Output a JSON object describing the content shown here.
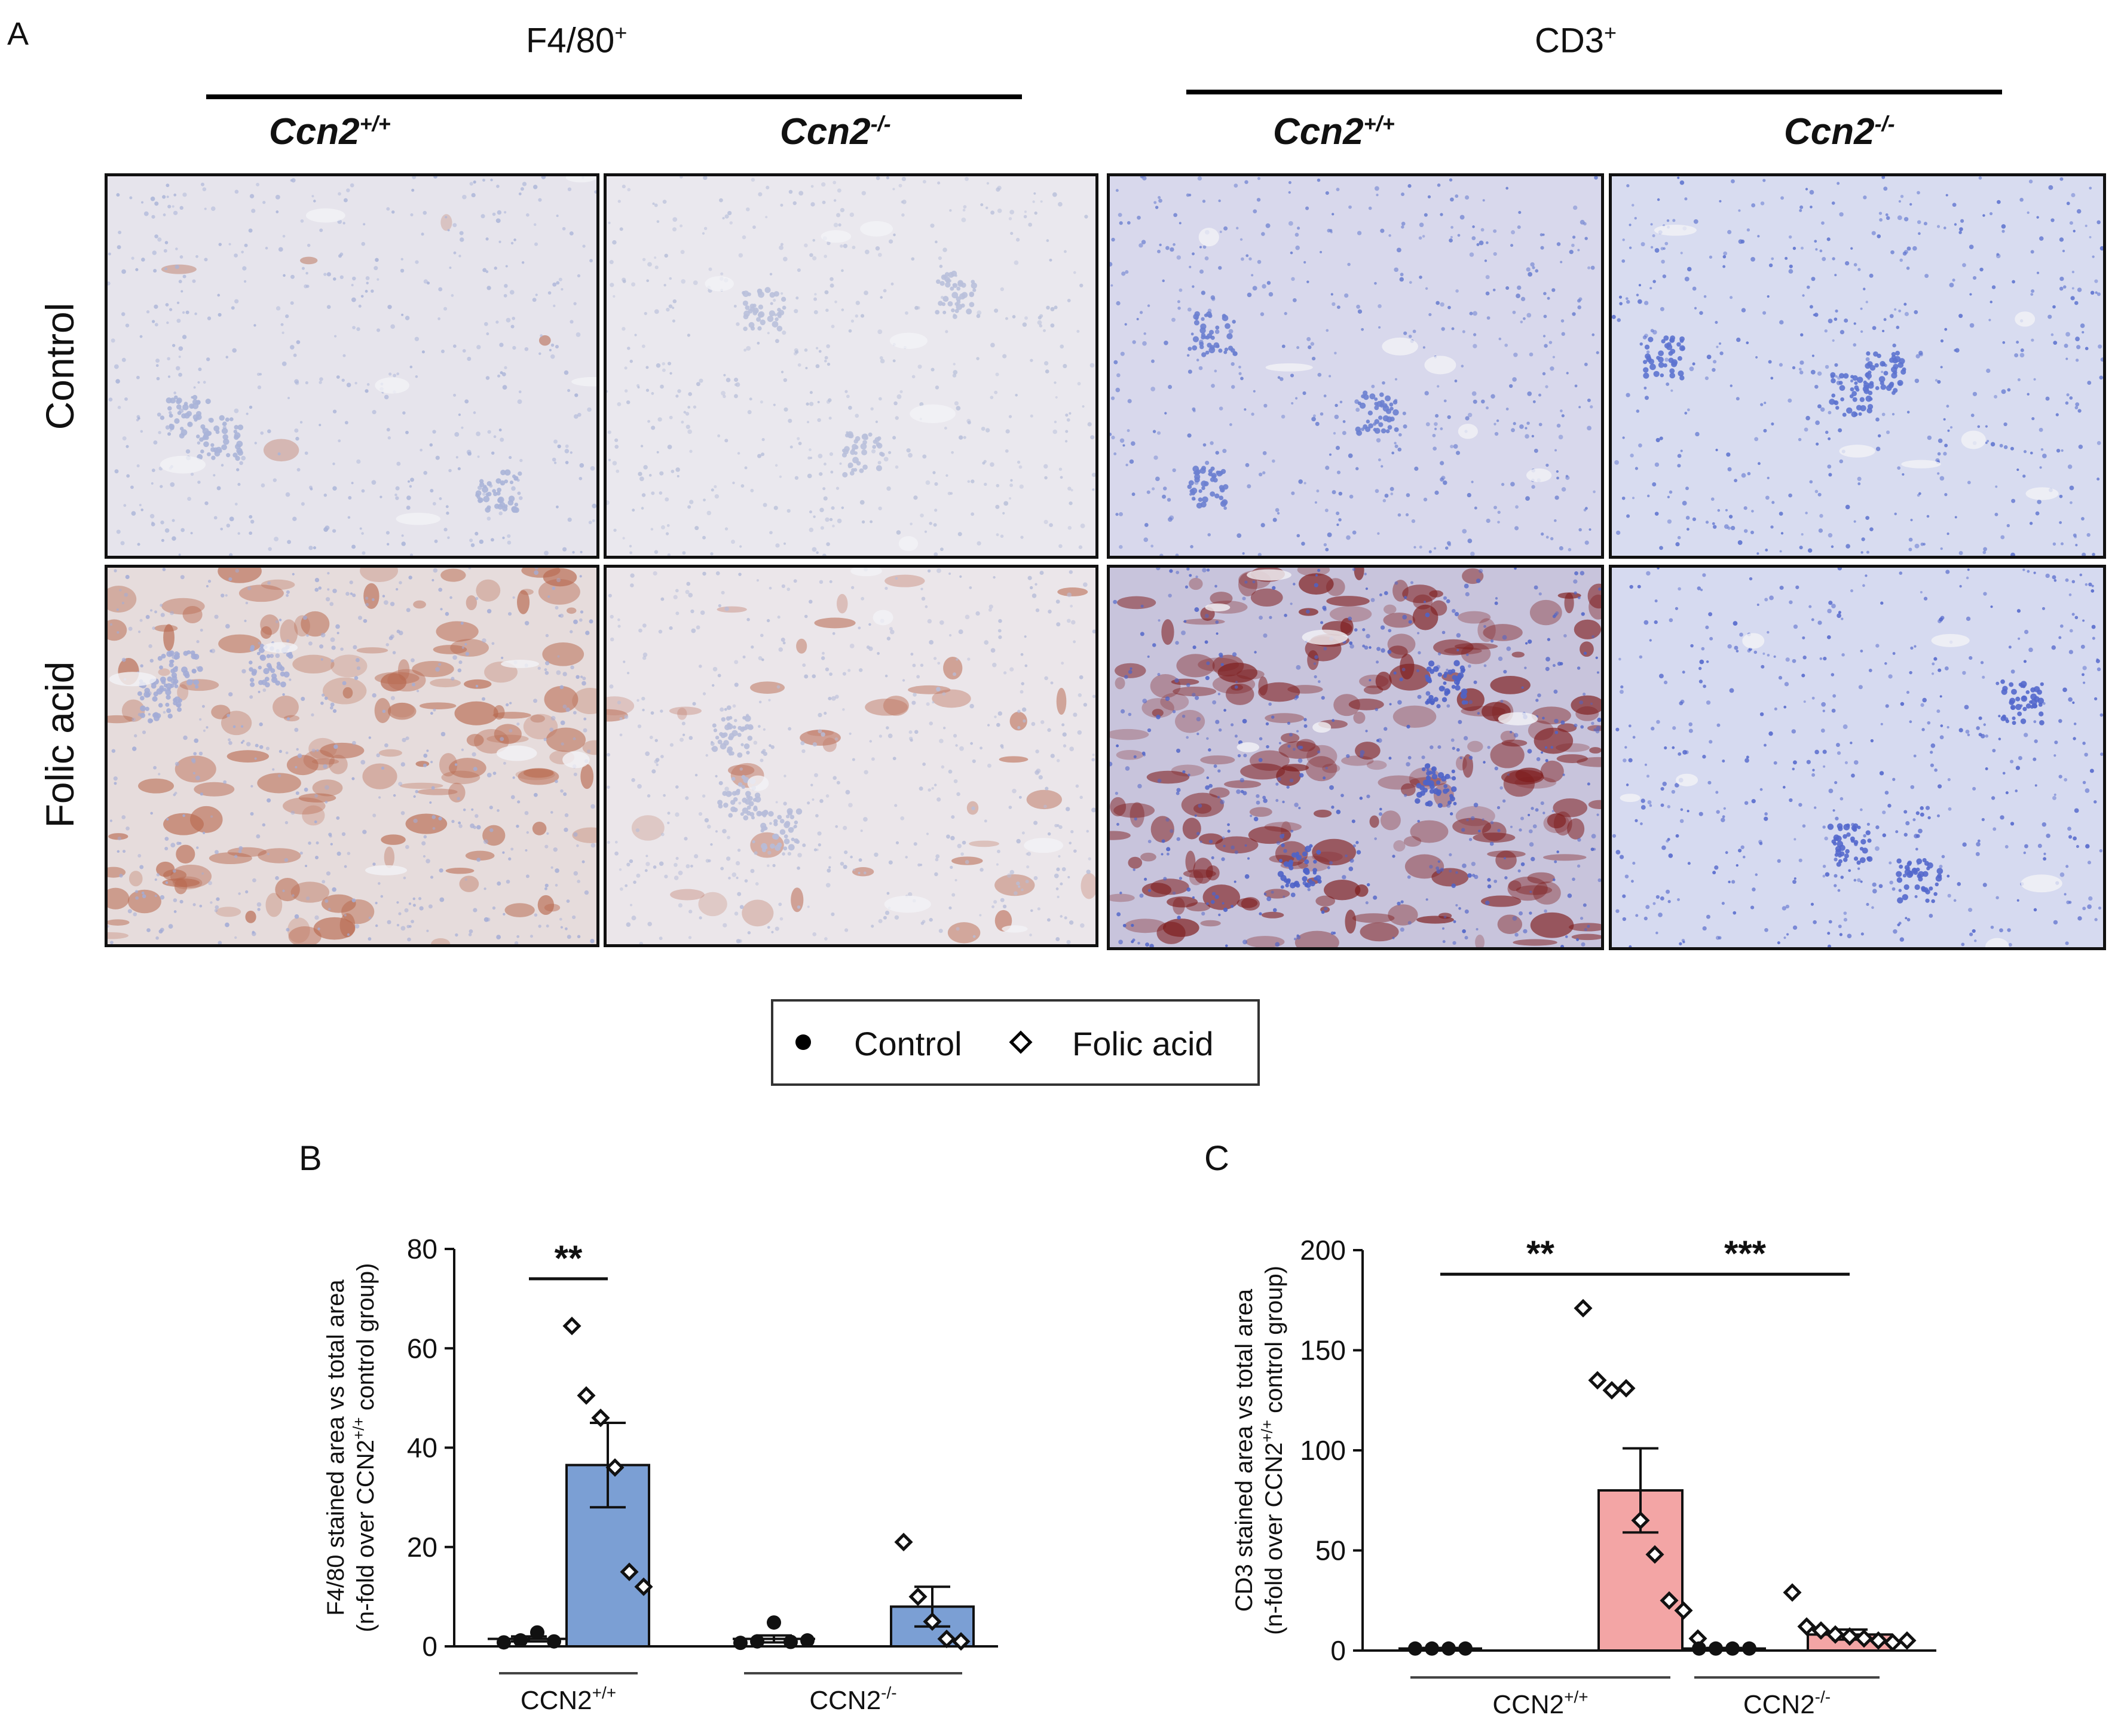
{
  "panel_a": {
    "letter": "A",
    "groups": [
      {
        "label": "F4/80",
        "sup": "+"
      },
      {
        "label": "CD3",
        "sup": "+"
      }
    ],
    "genotypes": [
      {
        "base": "Ccn2",
        "sup": "+/+"
      },
      {
        "base": "Ccn2",
        "sup": "-/-"
      },
      {
        "base": "Ccn2",
        "sup": "+/+"
      },
      {
        "base": "Ccn2",
        "sup": "-/-"
      }
    ],
    "rows": [
      "Control",
      "Folic acid"
    ],
    "tiles": [
      {
        "stain": "F4/80",
        "genotype": "+/+",
        "condition": "Control",
        "stain_level": 0.02,
        "base_color": "#e6e4ec",
        "nuclei_color": "#aab4d8",
        "stain_color": "#b5654a"
      },
      {
        "stain": "F4/80",
        "genotype": "-/-",
        "condition": "Control",
        "stain_level": 0.0,
        "base_color": "#eae8ee",
        "nuclei_color": "#b9c0da",
        "stain_color": "#b5654a"
      },
      {
        "stain": "CD3",
        "genotype": "+/+",
        "condition": "Control",
        "stain_level": 0.0,
        "base_color": "#d8d8ec",
        "nuclei_color": "#6b7fd0",
        "stain_color": "#8a1f1f"
      },
      {
        "stain": "CD3",
        "genotype": "-/-",
        "condition": "Control",
        "stain_level": 0.0,
        "base_color": "#d8dcf0",
        "nuclei_color": "#5d73cf",
        "stain_color": "#8a1f1f"
      },
      {
        "stain": "F4/80",
        "genotype": "+/+",
        "condition": "Folic acid",
        "stain_level": 0.55,
        "base_color": "#e6dcdc",
        "nuclei_color": "#a3acd6",
        "stain_color": "#b8694f"
      },
      {
        "stain": "F4/80",
        "genotype": "-/-",
        "condition": "Folic acid",
        "stain_level": 0.15,
        "base_color": "#ebe6ea",
        "nuclei_color": "#b7bdd9",
        "stain_color": "#c07a66"
      },
      {
        "stain": "CD3",
        "genotype": "+/+",
        "condition": "Folic acid",
        "stain_level": 0.85,
        "base_color": "#c8c4dc",
        "nuclei_color": "#4e63c8",
        "stain_color": "#7e1c1c"
      },
      {
        "stain": "CD3",
        "genotype": "-/-",
        "condition": "Folic acid",
        "stain_level": 0.0,
        "base_color": "#d6daf0",
        "nuclei_color": "#5468cc",
        "stain_color": "#8a1f1f"
      }
    ]
  },
  "legend": {
    "items": [
      {
        "label": "Control",
        "marker": "filled-circle"
      },
      {
        "label": "Folic acid",
        "marker": "open-diamond"
      }
    ]
  },
  "chart_data": [
    {
      "panel": "B",
      "type": "bar",
      "ylabel_line1": "F4/80 stained area vs total area",
      "ylabel_line2_pre": "(n-fold over CCN2",
      "ylabel_line2_sup": "+/+",
      "ylabel_line2_post": " control group)",
      "ylim": [
        0,
        80
      ],
      "yticks": [
        "0",
        "20",
        "40",
        "60",
        "80"
      ],
      "group_labels": [
        {
          "base": "CCN2",
          "sup": "+/+"
        },
        {
          "base": "CCN2",
          "sup": "-/-"
        }
      ],
      "bar_color": "#7b9fd4",
      "bars": [
        {
          "group": "CCN2+/+",
          "condition": "Control",
          "mean": 1.5,
          "sem": 0.5,
          "points": [
            0.8,
            1.2,
            2.8,
            1.0
          ]
        },
        {
          "group": "CCN2+/+",
          "condition": "Folic acid",
          "mean": 36.5,
          "sem": 8.5,
          "points": [
            64.5,
            50.5,
            46.0,
            36.0,
            15.0,
            12.0
          ]
        },
        {
          "group": "CCN2-/-",
          "condition": "Control",
          "mean": 1.5,
          "sem": 0.7,
          "points": [
            0.7,
            1.0,
            4.8,
            0.9,
            1.2
          ]
        },
        {
          "group": "CCN2-/-",
          "condition": "Folic acid",
          "mean": 8.0,
          "sem": 4.0,
          "points": [
            21.0,
            10.0,
            5.0,
            1.5,
            1.0
          ]
        }
      ],
      "significance": [
        {
          "from": 0,
          "to": 1,
          "label": "**",
          "y": 74
        }
      ]
    },
    {
      "panel": "C",
      "type": "bar",
      "ylabel_line1": "CD3 stained area vs total area",
      "ylabel_line2_pre": "(n-fold over CCN2",
      "ylabel_line2_sup": "+/+",
      "ylabel_line2_post": " control group)",
      "ylim": [
        0,
        200
      ],
      "yticks": [
        "0",
        "50",
        "100",
        "150",
        "200"
      ],
      "group_labels": [
        {
          "base": "CCN2",
          "sup": "+/+"
        },
        {
          "base": "CCN2",
          "sup": "-/-"
        }
      ],
      "bar_color": "#f3a5a5",
      "bars": [
        {
          "group": "CCN2+/+",
          "condition": "Control",
          "mean": 1.0,
          "sem": 0.3,
          "points": [
            1.0,
            1.0,
            1.0,
            1.0
          ]
        },
        {
          "group": "CCN2+/+",
          "condition": "Folic acid",
          "mean": 80.0,
          "sem": 21.0,
          "points": [
            171.0,
            135.0,
            130.0,
            131.0,
            65.0,
            48.0,
            25.0,
            20.0,
            6.0
          ]
        },
        {
          "group": "CCN2-/-",
          "condition": "Control",
          "mean": 1.0,
          "sem": 0.3,
          "points": [
            1.0,
            1.0,
            1.0,
            1.0
          ]
        },
        {
          "group": "CCN2-/-",
          "condition": "Folic acid",
          "mean": 8.0,
          "sem": 2.5,
          "points": [
            29.0,
            12.0,
            10.0,
            8.0,
            7.0,
            6.0,
            5.0,
            4.0,
            5.0
          ]
        }
      ],
      "significance": [
        {
          "from": 0,
          "to": 1,
          "label": "**",
          "y": 188
        },
        {
          "from": 1,
          "to": 3,
          "label": "***",
          "y": 188
        }
      ]
    }
  ]
}
